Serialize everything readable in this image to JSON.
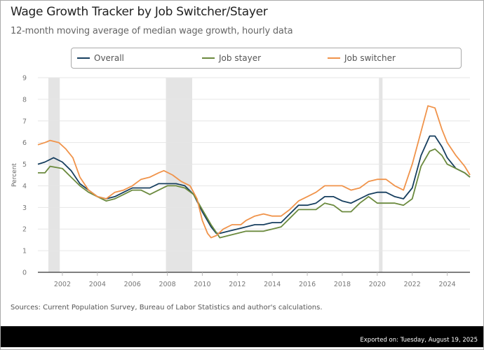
{
  "title": "Wage Growth Tracker by Job Switcher/Stayer",
  "subtitle": "12-month moving average of median wage growth, hourly data",
  "sources": "Sources: Current Population Survey, Bureau of Labor Statistics and author's calculations.",
  "exported": "Exported on: Tuesday, August 19, 2025",
  "chart_data": {
    "type": "line",
    "title": "Wage Growth Tracker by Job Switcher/Stayer",
    "ylabel": "Percent",
    "xlabel": "",
    "xlim": [
      2000.6,
      2025.3
    ],
    "ylim": [
      0,
      9
    ],
    "yticks": [
      "0",
      "1",
      "2",
      "3",
      "4",
      "5",
      "6",
      "7",
      "8",
      "9"
    ],
    "xticks": [
      "2002",
      "2004",
      "2006",
      "2008",
      "2010",
      "2012",
      "2014",
      "2016",
      "2018",
      "2020",
      "2022",
      "2024"
    ],
    "grid": true,
    "legend_position": "top",
    "shaded_periods": [
      [
        2001.2,
        2001.85
      ],
      [
        2007.92,
        2009.42
      ],
      [
        2020.1,
        2020.3
      ]
    ],
    "series": [
      {
        "name": "Overall",
        "color": "#173f5f",
        "x": [
          2000.6,
          2001.0,
          2001.5,
          2002.0,
          2002.5,
          2003.0,
          2003.5,
          2004.0,
          2004.5,
          2005.0,
          2005.5,
          2006.0,
          2006.5,
          2007.0,
          2007.5,
          2008.0,
          2008.5,
          2009.0,
          2009.5,
          2010.0,
          2010.5,
          2010.8,
          2011.0,
          2011.5,
          2012.0,
          2012.5,
          2013.0,
          2013.5,
          2014.0,
          2014.5,
          2015.0,
          2015.5,
          2016.0,
          2016.5,
          2017.0,
          2017.5,
          2018.0,
          2018.5,
          2019.0,
          2019.5,
          2020.0,
          2020.5,
          2021.0,
          2021.5,
          2022.0,
          2022.5,
          2023.0,
          2023.3,
          2023.7,
          2024.0,
          2024.5,
          2025.0,
          2025.3
        ],
        "values": [
          5.0,
          5.1,
          5.3,
          5.1,
          4.7,
          4.1,
          3.8,
          3.5,
          3.4,
          3.5,
          3.7,
          3.9,
          3.9,
          3.9,
          4.1,
          4.1,
          4.1,
          4.0,
          3.6,
          2.8,
          2.1,
          1.8,
          1.8,
          1.9,
          2.0,
          2.1,
          2.2,
          2.2,
          2.3,
          2.3,
          2.7,
          3.1,
          3.1,
          3.2,
          3.5,
          3.5,
          3.3,
          3.2,
          3.4,
          3.6,
          3.7,
          3.7,
          3.5,
          3.4,
          3.9,
          5.4,
          6.3,
          6.3,
          5.8,
          5.3,
          4.8,
          4.6,
          4.4
        ]
      },
      {
        "name": "Job stayer",
        "color": "#6b8a3e",
        "x": [
          2000.6,
          2001.0,
          2001.3,
          2002.0,
          2002.5,
          2003.0,
          2003.5,
          2004.0,
          2004.5,
          2005.0,
          2005.5,
          2006.0,
          2006.5,
          2007.0,
          2007.5,
          2008.0,
          2008.5,
          2009.0,
          2009.5,
          2010.0,
          2010.5,
          2011.0,
          2011.5,
          2012.0,
          2012.5,
          2013.0,
          2013.5,
          2014.0,
          2014.5,
          2015.0,
          2015.5,
          2016.0,
          2016.5,
          2017.0,
          2017.5,
          2018.0,
          2018.5,
          2019.0,
          2019.5,
          2020.0,
          2020.5,
          2021.0,
          2021.5,
          2022.0,
          2022.5,
          2023.0,
          2023.3,
          2023.7,
          2024.0,
          2024.5,
          2025.0,
          2025.3
        ],
        "values": [
          4.6,
          4.6,
          4.9,
          4.8,
          4.4,
          4.0,
          3.7,
          3.5,
          3.3,
          3.4,
          3.6,
          3.8,
          3.8,
          3.6,
          3.8,
          4.0,
          4.0,
          3.9,
          3.6,
          2.9,
          2.2,
          1.6,
          1.7,
          1.8,
          1.9,
          1.9,
          1.9,
          2.0,
          2.1,
          2.5,
          2.9,
          2.9,
          2.9,
          3.2,
          3.1,
          2.8,
          2.8,
          3.2,
          3.5,
          3.2,
          3.2,
          3.2,
          3.1,
          3.4,
          4.9,
          5.6,
          5.7,
          5.4,
          5.0,
          4.8,
          4.6,
          4.4
        ]
      },
      {
        "name": "Job switcher",
        "color": "#f0934a",
        "x": [
          2000.6,
          2001.0,
          2001.3,
          2001.8,
          2002.2,
          2002.6,
          2003.0,
          2003.5,
          2004.0,
          2004.5,
          2005.0,
          2005.5,
          2006.0,
          2006.5,
          2007.0,
          2007.5,
          2007.8,
          2008.3,
          2008.8,
          2009.3,
          2009.7,
          2010.0,
          2010.3,
          2010.5,
          2010.8,
          2011.2,
          2011.7,
          2012.2,
          2012.5,
          2013.0,
          2013.5,
          2014.0,
          2014.5,
          2015.0,
          2015.5,
          2016.0,
          2016.5,
          2017.0,
          2017.5,
          2018.0,
          2018.5,
          2019.0,
          2019.5,
          2020.0,
          2020.5,
          2021.0,
          2021.5,
          2022.0,
          2022.5,
          2022.9,
          2023.3,
          2023.7,
          2024.0,
          2024.5,
          2025.0,
          2025.3
        ],
        "values": [
          5.9,
          6.0,
          6.1,
          6.0,
          5.7,
          5.3,
          4.4,
          3.8,
          3.5,
          3.4,
          3.7,
          3.8,
          4.0,
          4.3,
          4.4,
          4.6,
          4.7,
          4.5,
          4.2,
          4.0,
          3.4,
          2.4,
          1.8,
          1.6,
          1.7,
          2.0,
          2.2,
          2.2,
          2.4,
          2.6,
          2.7,
          2.6,
          2.6,
          2.9,
          3.3,
          3.5,
          3.7,
          4.0,
          4.0,
          4.0,
          3.8,
          3.9,
          4.2,
          4.3,
          4.3,
          4.0,
          3.8,
          5.0,
          6.5,
          7.7,
          7.6,
          6.6,
          6.0,
          5.4,
          4.9,
          4.5
        ]
      }
    ]
  }
}
